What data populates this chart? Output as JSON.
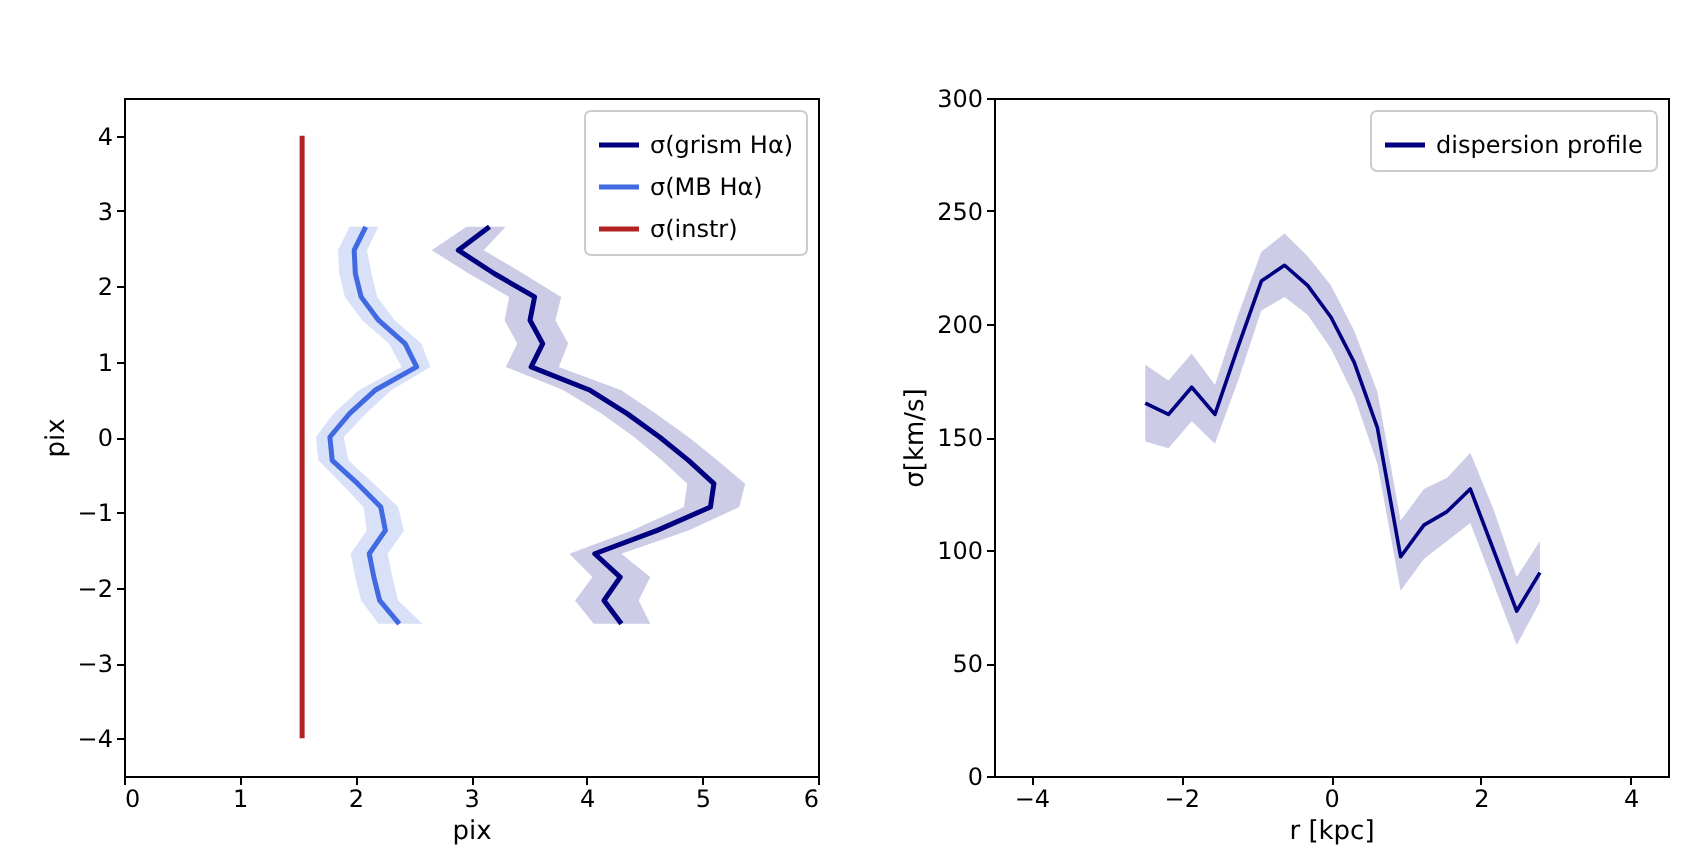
{
  "chart_data": [
    {
      "type": "line",
      "orientation": "horizontal",
      "xlabel": "pix",
      "ylabel": "pix",
      "xlim": [
        0,
        6
      ],
      "ylim": [
        -4.5,
        4.5
      ],
      "xticks": [
        0,
        1,
        2,
        3,
        4,
        5,
        6
      ],
      "yticks": [
        {
          "value": -4,
          "label": "−4"
        },
        {
          "value": -3,
          "label": "−3"
        },
        {
          "value": -2,
          "label": "−2"
        },
        {
          "value": -1,
          "label": "−1"
        },
        0,
        1,
        2,
        3,
        4
      ],
      "legend": "top right",
      "grid": false,
      "series": [
        {
          "name": "σ(grism Hα)",
          "color": "#000080",
          "x": [
            2.79,
            2.48,
            2.17,
            1.86,
            1.55,
            1.24,
            0.93,
            0.62,
            0.31,
            0,
            -0.31,
            -0.62,
            -0.93,
            -1.24,
            -1.55,
            -1.86,
            -2.17,
            -2.48
          ],
          "values": [
            3.16,
            2.89,
            3.2,
            3.55,
            3.51,
            3.62,
            3.52,
            4.03,
            4.35,
            4.63,
            4.88,
            5.1,
            5.07,
            4.61,
            4.07,
            4.29,
            4.15,
            4.3
          ],
          "lower": [
            2.96,
            2.66,
            2.98,
            3.33,
            3.29,
            3.4,
            3.3,
            3.8,
            4.13,
            4.41,
            4.65,
            4.87,
            4.84,
            4.39,
            3.85,
            4.05,
            3.9,
            4.06
          ],
          "upper": [
            3.3,
            3.11,
            3.45,
            3.78,
            3.73,
            3.84,
            3.76,
            4.3,
            4.6,
            4.88,
            5.13,
            5.37,
            5.32,
            4.88,
            4.3,
            4.55,
            4.45,
            4.55
          ]
        },
        {
          "name": "σ(MB Hα)",
          "color": "#4169e1",
          "x": [
            2.79,
            2.48,
            2.17,
            1.86,
            1.55,
            1.24,
            0.93,
            0.62,
            0.31,
            0,
            -0.31,
            -0.62,
            -0.93,
            -1.24,
            -1.55,
            -1.86,
            -2.17,
            -2.48
          ],
          "values": [
            2.09,
            1.99,
            2.0,
            2.05,
            2.2,
            2.43,
            2.53,
            2.17,
            1.95,
            1.78,
            1.8,
            2.02,
            2.22,
            2.26,
            2.12,
            2.16,
            2.21,
            2.38
          ],
          "lower": [
            1.95,
            1.85,
            1.86,
            1.91,
            2.06,
            2.29,
            2.4,
            2.03,
            1.81,
            1.66,
            1.68,
            1.88,
            2.07,
            2.1,
            1.96,
            2.0,
            2.05,
            2.2
          ],
          "upper": [
            2.2,
            2.1,
            2.14,
            2.19,
            2.34,
            2.57,
            2.65,
            2.31,
            2.09,
            1.9,
            1.94,
            2.16,
            2.37,
            2.42,
            2.28,
            2.32,
            2.37,
            2.58
          ]
        },
        {
          "name": "σ(instr)",
          "color": "#b22222",
          "x": [
            -4,
            4
          ],
          "values": [
            1.54,
            1.54
          ]
        }
      ]
    },
    {
      "type": "line",
      "xlabel": "r [kpc]",
      "ylabel": "σ[km/s]",
      "xlim": [
        -4.5,
        4.5
      ],
      "ylim": [
        0,
        300
      ],
      "xticks": [
        {
          "value": -4,
          "label": "−4"
        },
        {
          "value": -2,
          "label": "−2"
        },
        0,
        2,
        4
      ],
      "yticks": [
        0,
        50,
        100,
        150,
        200,
        250,
        300
      ],
      "legend": "top right",
      "grid": false,
      "series": [
        {
          "name": "dispersion profile",
          "color": "#000080",
          "x": [
            -2.48,
            -2.17,
            -1.86,
            -1.55,
            -1.24,
            -0.93,
            -0.62,
            -0.31,
            0,
            0.31,
            0.62,
            0.93,
            1.24,
            1.55,
            1.86,
            2.17,
            2.48,
            2.79
          ],
          "values": [
            165,
            160,
            172,
            160,
            190,
            219,
            226,
            217,
            203,
            183,
            154,
            97,
            111,
            117,
            127,
            100,
            73,
            90
          ],
          "lower": [
            148,
            145,
            157,
            147,
            175,
            206,
            212,
            204,
            189,
            168,
            138,
            82,
            96,
            104,
            112,
            85,
            58,
            77
          ],
          "upper": [
            182,
            175,
            187,
            173,
            204,
            232,
            240,
            230,
            217,
            197,
            170,
            113,
            127,
            132,
            143,
            118,
            88,
            104
          ]
        }
      ]
    }
  ]
}
